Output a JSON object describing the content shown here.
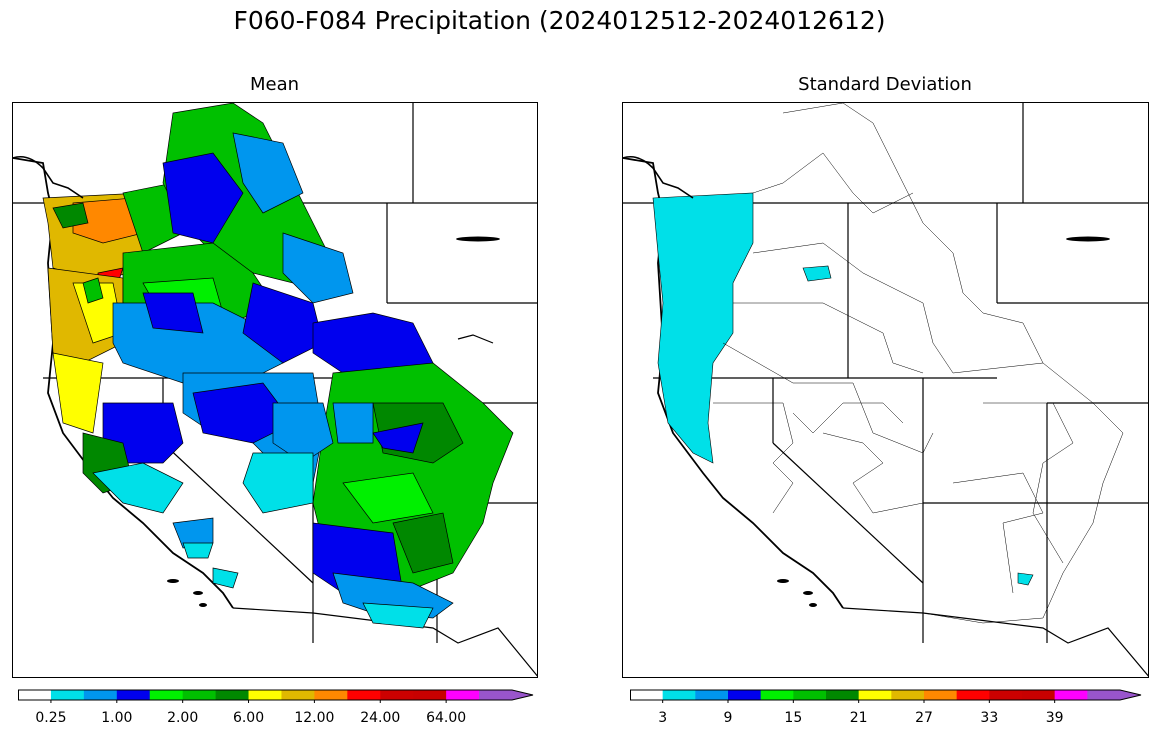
{
  "title": "F060-F084 Precipitation (2024012512-2024012612)",
  "panels": [
    {
      "subtitle": "Mean",
      "colorbar": {
        "colors": [
          "#ffffff",
          "#00e0e8",
          "#0096ee",
          "#0000ee",
          "#00f000",
          "#00c000",
          "#008800",
          "#ffff00",
          "#e0b800",
          "#ff8800",
          "#ff0000",
          "#cc0000",
          "#c80000",
          "#ff00ff",
          "#9955cc"
        ],
        "tick_labels": [
          "0.25",
          "1.00",
          "2.00",
          "6.00",
          "12.00",
          "24.00",
          "64.00"
        ],
        "extends": "max"
      }
    },
    {
      "subtitle": "Standard Deviation",
      "colorbar": {
        "colors": [
          "#ffffff",
          "#00e0e8",
          "#0096ee",
          "#0000ee",
          "#00f000",
          "#00c000",
          "#008800",
          "#ffff00",
          "#e0b800",
          "#ff8800",
          "#ff0000",
          "#cc0000",
          "#c80000",
          "#ff00ff",
          "#9955cc"
        ],
        "tick_labels": [
          "3",
          "9",
          "15",
          "21",
          "27",
          "33",
          "39"
        ],
        "extends": "max"
      }
    }
  ]
}
